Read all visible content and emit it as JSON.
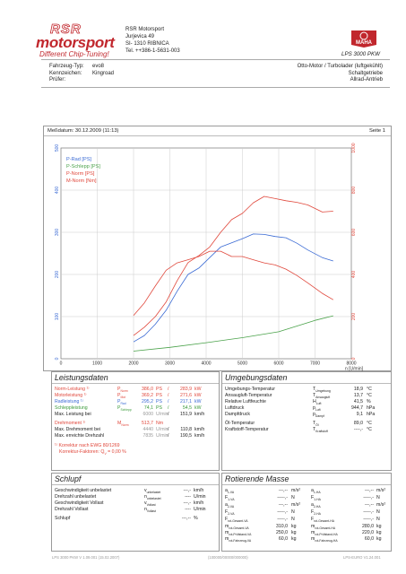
{
  "header": {
    "logo_line1": "RSR",
    "logo_line2": "motorsport",
    "logo_line3": "Different Chip-Tuning!",
    "company": "RSR Motorsport",
    "street": "Jurjevica 49",
    "city": "SI- 1310 RIBNICA",
    "phone": "Tel. ++386-1-5631-003",
    "maha_logo": "MAHA",
    "model": "LPS 3000 PKW"
  },
  "vehicle": {
    "type_label": "Fahrzeug-Typ:",
    "type_value": "evo8",
    "plate_label": "Kennzeichen:",
    "plate_value": "Kingroad",
    "inspector_label": "Prüfer:",
    "inspector_value": "",
    "engine": "Otto-Motor / Turbolader (luftgekühlt)",
    "gearbox": "Schaltgetriebe",
    "drive": "Allrad-Antrieb"
  },
  "measure": {
    "date": "Meßdatum: 30.12.2009 (11:13)",
    "page": "Seite 1"
  },
  "chart_data": {
    "type": "line",
    "x_axis_label": "n [U/min]",
    "x_ticks": [
      "0",
      "1000",
      "2000",
      "3000",
      "4000",
      "5000",
      "6000",
      "7000",
      "8000"
    ],
    "xlim": [
      0,
      8000
    ],
    "y_left_ticks": [
      "0",
      "100",
      "200",
      "300",
      "400",
      "500"
    ],
    "ylim_left": [
      0,
      500
    ],
    "y_right_ticks": [
      "0",
      "200",
      "400",
      "600",
      "800",
      "1000"
    ],
    "ylim_right": [
      0,
      1000
    ],
    "legend_position": "top-left",
    "colors": {
      "P-Rad": "#3a6ad4",
      "P-Schlepp": "#4aa24a",
      "P-Norm": "#e0473b",
      "M-Norm": "#e0473b"
    },
    "series": [
      {
        "name": "P-Rad [PS]",
        "axis": "left",
        "x": [
          2000,
          2300,
          2600,
          2900,
          3200,
          3500,
          3800,
          4100,
          4400,
          4700,
          5000,
          5300,
          5600,
          5900,
          6200,
          6500,
          6800,
          7200,
          7500
        ],
        "y": [
          40,
          55,
          82,
          115,
          160,
          200,
          215,
          240,
          265,
          275,
          285,
          296,
          295,
          290,
          287,
          274,
          258,
          240,
          232
        ]
      },
      {
        "name": "P-Schlepp [PS]",
        "axis": "left",
        "x": [
          2000,
          3000,
          4000,
          5000,
          6000,
          7000,
          7500
        ],
        "y": [
          18,
          27,
          38,
          50,
          64,
          91,
          102
        ]
      },
      {
        "name": "P-Norm [PS]",
        "axis": "left",
        "x": [
          2000,
          2300,
          2600,
          2900,
          3200,
          3500,
          3800,
          4100,
          4400,
          4700,
          5000,
          5300,
          5600,
          5900,
          6200,
          6500,
          6800,
          7200,
          7500
        ],
        "y": [
          55,
          75,
          100,
          135,
          185,
          228,
          245,
          265,
          300,
          330,
          345,
          370,
          385,
          380,
          375,
          371,
          365,
          348,
          350
        ]
      },
      {
        "name": "M-Norm [Nm]",
        "axis": "right",
        "x": [
          2000,
          2300,
          2600,
          2900,
          3200,
          3500,
          3800,
          4100,
          4400,
          4700,
          5000,
          5300,
          5600,
          5900,
          6200,
          6500,
          6800,
          7200,
          7500
        ],
        "y": [
          205,
          265,
          345,
          420,
          455,
          470,
          485,
          510,
          510,
          485,
          485,
          470,
          455,
          445,
          425,
          395,
          360,
          310,
          280
        ]
      }
    ]
  },
  "leistung": {
    "title": "Leistungsdaten",
    "rows": [
      {
        "label": "Norm-Leistung",
        "sym": "P",
        "sub": "Norm",
        "v1": "386,0",
        "u1": "PS",
        "v2": "283,9",
        "u2": "kW",
        "cls": "red"
      },
      {
        "label": "Motorleistung",
        "sym": "P",
        "sub": "Mot",
        "v1": "369,2",
        "u1": "PS",
        "v2": "271,6",
        "u2": "kW",
        "cls": "red"
      },
      {
        "label": "Radleistung",
        "sym": "P",
        "sub": "Rad",
        "v1": "295,2",
        "u1": "PS",
        "v2": "217,1",
        "u2": "kW",
        "cls": "blue"
      },
      {
        "label": "Schleppleistung",
        "sym": "P",
        "sub": "Schlepp",
        "v1": "74,1",
        "u1": "PS",
        "v2": "54,5",
        "u2": "kW",
        "cls": "green"
      },
      {
        "label": "Max. Leistung bei",
        "sym": "",
        "sub": "",
        "v1": "6000",
        "u1": "U/min",
        "v2": "151,9",
        "u2": "km/h",
        "cls": ""
      }
    ],
    "torque": {
      "label": "Drehmoment",
      "sym": "M",
      "sub": "Norm",
      "v": "513,7",
      "u": "Nm"
    },
    "torque_at": {
      "label": "Max. Drehmoment bei",
      "v1": "4440",
      "u1": "U/min",
      "v2": "110,8",
      "u2": "km/h"
    },
    "rpm_max": {
      "label": "Max. erreichte Drehzahl",
      "v1": "7835",
      "u1": "U/min",
      "v2": "190,5",
      "u2": "km/h"
    },
    "note1": "Korrektur nach EWG 80/1269",
    "note2": "Korrektur-Faktoren: Q",
    "note2_sub": "V",
    "note2_val": " = 0,00 %"
  },
  "umgebung": {
    "title": "Umgebungsdaten",
    "rows": [
      {
        "label": "Umgebungs-Temperatur",
        "sym": "T",
        "sub": "Umgebung",
        "v": "18,9",
        "u": "°C"
      },
      {
        "label": "Ansaugluft-Temperatur",
        "sym": "T",
        "sub": "Ansaugluft",
        "v": "13,7",
        "u": "°C"
      },
      {
        "label": "Relative Luftfeuchte",
        "sym": "H",
        "sub": "Luft",
        "v": "41,5",
        "u": "%"
      },
      {
        "label": "Luftdruck",
        "sym": "p",
        "sub": "Luft",
        "v": "944,7",
        "u": "hPa"
      },
      {
        "label": "Dampfdruck",
        "sym": "p",
        "sub": "Dampf",
        "v": "9,1",
        "u": "hPa"
      },
      {
        "label": "Öl-Temperatur",
        "sym": "T",
        "sub": "Öl",
        "v": "89,0",
        "u": "°C"
      },
      {
        "label": "Kraftstoff-Temperatur",
        "sym": "T",
        "sub": "Kraftstoff",
        "v": "----,-",
        "u": "°C"
      }
    ]
  },
  "schlupf": {
    "title": "Schlupf",
    "rows": [
      {
        "label": "Geschwindigkeit unbelastet",
        "sym": "v",
        "sub": "unbelastet",
        "v": "---,-",
        "u": "km/h"
      },
      {
        "label": "Drehzahl unbelastet",
        "sym": "n",
        "sub": "unbelastet",
        "v": "----",
        "u": "U/min"
      },
      {
        "label": "Geschwindigkeit Vollast",
        "sym": "v",
        "sub": "Vollast",
        "v": "---,-",
        "u": "km/h"
      },
      {
        "label": "Drehzahl Vollast",
        "sym": "n",
        "sub": "Vollast",
        "v": "----",
        "u": "U/min"
      },
      {
        "label": "Schlupf",
        "sym": "",
        "sub": "",
        "v": "---,--",
        "u": "%"
      }
    ]
  },
  "masse": {
    "title": "Rotierende Masse",
    "rows": [
      {
        "s1": "a",
        "b1": "1-VA",
        "v1": "---,--",
        "u1": "m/s²",
        "s2": "a",
        "b2": "1-HA",
        "v2": "---,--",
        "u2": "m/s²"
      },
      {
        "s1": "F",
        "b1": "1-VA",
        "v1": "-----,-",
        "u1": "N",
        "s2": "F",
        "b2": "1-HA",
        "v2": "-----,-",
        "u2": "N"
      },
      {
        "s1": "a",
        "b1": "2-VA",
        "v1": "---,--",
        "u1": "m/s²",
        "s2": "a",
        "b2": "2-HA",
        "v2": "---,--",
        "u2": "m/s²"
      },
      {
        "s1": "F",
        "b1": "2-VA",
        "v1": "-----,-",
        "u1": "N",
        "s2": "F",
        "b2": "2-HA",
        "v2": "-----,-",
        "u2": "N"
      },
      {
        "s1": "F",
        "b1": "rot-Gesamt-VA",
        "v1": "-----,-",
        "u1": "N",
        "s2": "F",
        "b2": "rot-Gesamt-HA",
        "v2": "-----,-",
        "u2": "N"
      },
      {
        "s1": "m",
        "b1": "rot-Gesamt-VA",
        "v1": "310,0",
        "u1": "kg",
        "s2": "m",
        "b2": "rot-Gesamt-HA",
        "v2": "280,0",
        "u2": "kg"
      },
      {
        "s1": "m",
        "b1": "rot-Prüfstand-VA",
        "v1": "250,0",
        "u1": "kg",
        "s2": "m",
        "b2": "rot-Prüfstand-HA",
        "v2": "220,0",
        "u2": "kg"
      },
      {
        "s1": "m",
        "b1": "rot-Fahrzeug-VA",
        "v1": "60,0",
        "u1": "kg",
        "s2": "m",
        "b2": "rot-Fahrzeug-HA",
        "v2": "60,0",
        "u2": "kg"
      }
    ]
  },
  "footer": {
    "left": "LPS 3000 PKW V 1.09.001 (15.02.2007)",
    "center": "(100000/00000/000000)",
    "right": "LPS-EURO V1.24.001"
  }
}
